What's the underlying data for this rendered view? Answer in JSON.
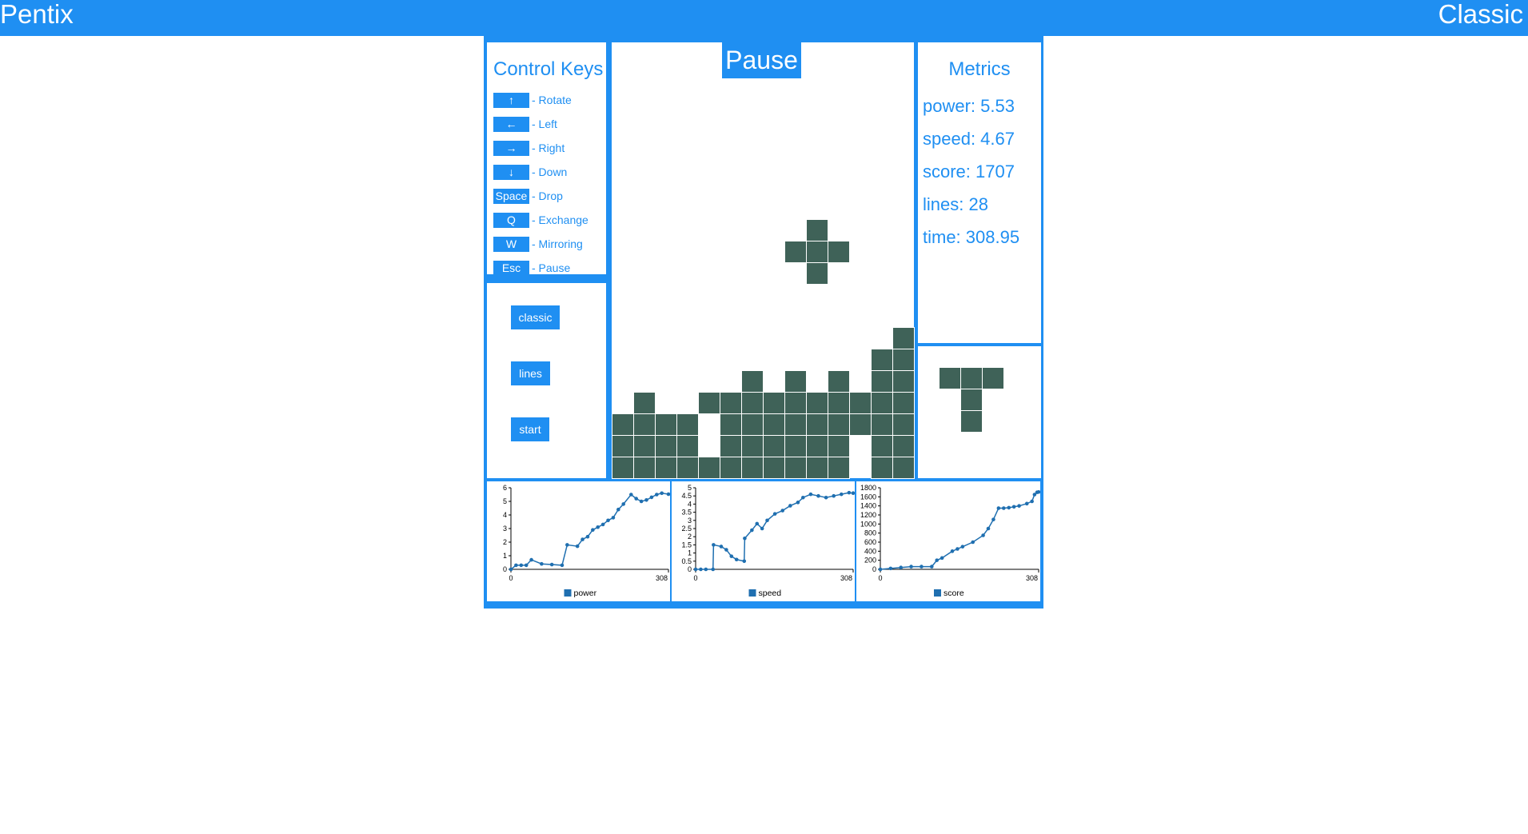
{
  "header": {
    "app_title": "Pentix",
    "mode_title": "Classic"
  },
  "controls": {
    "title": "Control Keys",
    "keys": [
      {
        "key": "↑",
        "action": "- Rotate"
      },
      {
        "key": "←",
        "action": "- Left"
      },
      {
        "key": "→",
        "action": "- Right"
      },
      {
        "key": "↓",
        "action": "- Down"
      },
      {
        "key": "Space",
        "action": "- Drop"
      },
      {
        "key": "Q",
        "action": "- Exchange"
      },
      {
        "key": "W",
        "action": "- Mirroring"
      },
      {
        "key": "Esc",
        "action": "- Pause"
      }
    ]
  },
  "modes": {
    "classic": "classic",
    "lines": "lines",
    "start": "start"
  },
  "board": {
    "status": "Pause",
    "cols": 14,
    "rows": 20,
    "block_color": "#3f6258",
    "falling_piece": [
      [
        9,
        8
      ],
      [
        8,
        9
      ],
      [
        9,
        9
      ],
      [
        10,
        9
      ],
      [
        9,
        10
      ]
    ],
    "stack": [
      [
        13,
        13
      ],
      [
        12,
        14
      ],
      [
        13,
        14
      ],
      [
        6,
        15
      ],
      [
        8,
        15
      ],
      [
        10,
        15
      ],
      [
        12,
        15
      ],
      [
        13,
        15
      ],
      [
        1,
        16
      ],
      [
        4,
        16
      ],
      [
        5,
        16
      ],
      [
        6,
        16
      ],
      [
        7,
        16
      ],
      [
        8,
        16
      ],
      [
        9,
        16
      ],
      [
        10,
        16
      ],
      [
        11,
        16
      ],
      [
        12,
        16
      ],
      [
        13,
        16
      ],
      [
        0,
        17
      ],
      [
        1,
        17
      ],
      [
        2,
        17
      ],
      [
        3,
        17
      ],
      [
        5,
        17
      ],
      [
        6,
        17
      ],
      [
        7,
        17
      ],
      [
        8,
        17
      ],
      [
        9,
        17
      ],
      [
        10,
        17
      ],
      [
        11,
        17
      ],
      [
        12,
        17
      ],
      [
        13,
        17
      ],
      [
        0,
        18
      ],
      [
        1,
        18
      ],
      [
        2,
        18
      ],
      [
        3,
        18
      ],
      [
        5,
        18
      ],
      [
        6,
        18
      ],
      [
        7,
        18
      ],
      [
        8,
        18
      ],
      [
        9,
        18
      ],
      [
        10,
        18
      ],
      [
        12,
        18
      ],
      [
        13,
        18
      ],
      [
        0,
        19
      ],
      [
        1,
        19
      ],
      [
        2,
        19
      ],
      [
        3,
        19
      ],
      [
        4,
        19
      ],
      [
        5,
        19
      ],
      [
        6,
        19
      ],
      [
        7,
        19
      ],
      [
        8,
        19
      ],
      [
        9,
        19
      ],
      [
        10,
        19
      ],
      [
        12,
        19
      ],
      [
        13,
        19
      ]
    ]
  },
  "metrics": {
    "title": "Metrics",
    "power": "power: 5.53",
    "speed": "speed: 4.67",
    "score": "score: 1707",
    "lines": "lines: 28",
    "time": "time: 308.95"
  },
  "next_piece": [
    [
      0,
      0
    ],
    [
      1,
      0
    ],
    [
      2,
      0
    ],
    [
      1,
      1
    ],
    [
      1,
      2
    ]
  ],
  "colors": {
    "accent": "#1f8ff2",
    "block": "#3f6258",
    "series": "#1f6fb0"
  },
  "chart_data": [
    {
      "type": "line",
      "x_ticks": [
        "0",
        "308"
      ],
      "xlim": [
        0,
        308
      ],
      "ylim": [
        0,
        6
      ],
      "y_ticks": [
        "0",
        "1",
        "2",
        "3",
        "4",
        "5",
        "6"
      ],
      "legend": "power",
      "series": [
        {
          "name": "power",
          "x": [
            0,
            10,
            20,
            30,
            40,
            60,
            80,
            100,
            110,
            130,
            140,
            150,
            160,
            170,
            180,
            190,
            200,
            210,
            220,
            235,
            245,
            255,
            265,
            275,
            285,
            295,
            308
          ],
          "y": [
            0,
            0.3,
            0.3,
            0.3,
            0.7,
            0.4,
            0.35,
            0.3,
            1.8,
            1.7,
            2.2,
            2.4,
            2.9,
            3.1,
            3.3,
            3.6,
            3.8,
            4.4,
            4.8,
            5.5,
            5.2,
            5.0,
            5.1,
            5.3,
            5.5,
            5.6,
            5.53
          ]
        }
      ]
    },
    {
      "type": "line",
      "x_ticks": [
        "0",
        "308"
      ],
      "xlim": [
        0,
        308
      ],
      "ylim": [
        0,
        5
      ],
      "y_ticks": [
        "0",
        "0.5",
        "1",
        "1.5",
        "2",
        "2.5",
        "3",
        "3.5",
        "4",
        "4.5",
        "5"
      ],
      "legend": "speed",
      "series": [
        {
          "name": "speed",
          "x": [
            0,
            10,
            20,
            34,
            35,
            50,
            60,
            70,
            80,
            95,
            96,
            110,
            120,
            130,
            140,
            155,
            170,
            185,
            200,
            210,
            225,
            240,
            255,
            270,
            285,
            300,
            308
          ],
          "y": [
            0,
            0,
            0,
            0,
            1.5,
            1.4,
            1.2,
            0.8,
            0.6,
            0.5,
            1.9,
            2.4,
            2.8,
            2.5,
            3.0,
            3.4,
            3.6,
            3.9,
            4.1,
            4.4,
            4.6,
            4.5,
            4.4,
            4.5,
            4.6,
            4.7,
            4.67
          ]
        }
      ]
    },
    {
      "type": "line",
      "x_ticks": [
        "0",
        "308"
      ],
      "xlim": [
        0,
        308
      ],
      "ylim": [
        0,
        1800
      ],
      "y_ticks": [
        "0",
        "200",
        "400",
        "600",
        "800",
        "1000",
        "1200",
        "1400",
        "1600",
        "1800"
      ],
      "legend": "score",
      "series": [
        {
          "name": "score",
          "x": [
            0,
            20,
            40,
            60,
            80,
            100,
            110,
            120,
            140,
            150,
            160,
            180,
            200,
            210,
            220,
            230,
            240,
            250,
            260,
            270,
            285,
            295,
            300,
            305,
            308
          ],
          "y": [
            0,
            20,
            40,
            60,
            60,
            60,
            200,
            250,
            400,
            450,
            500,
            600,
            750,
            900,
            1100,
            1350,
            1350,
            1360,
            1380,
            1400,
            1450,
            1500,
            1650,
            1700,
            1707
          ]
        }
      ]
    }
  ]
}
